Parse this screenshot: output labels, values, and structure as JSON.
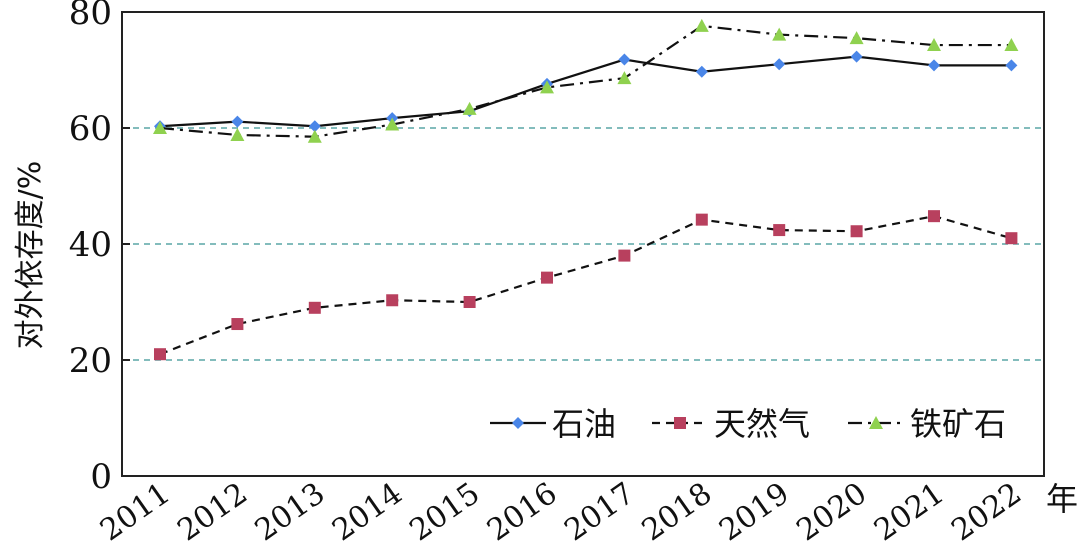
{
  "chart_data": {
    "type": "line",
    "xlabel": "年",
    "ylabel": "对外依存度/%",
    "categories": [
      "2011",
      "2012",
      "2013",
      "2014",
      "2015",
      "2016",
      "2017",
      "2018",
      "2019",
      "2020",
      "2021",
      "2022"
    ],
    "ylim": [
      0,
      80
    ],
    "yticks": [
      0,
      20,
      40,
      60,
      80
    ],
    "grid": "horizontal dashed at 20, 40, 60",
    "legend_position": "bottom-right",
    "series": [
      {
        "name": "石油",
        "values": [
          60.3,
          61.1,
          60.3,
          61.7,
          62.9,
          67.6,
          71.8,
          69.7,
          71.0,
          72.3,
          70.8,
          70.8
        ],
        "color": "#4a86e8",
        "marker": "diamond",
        "line": "solid"
      },
      {
        "name": "天然气",
        "values": [
          21.0,
          26.2,
          29.0,
          30.3,
          30.0,
          34.2,
          38.0,
          44.2,
          42.4,
          42.2,
          44.8,
          41.0
        ],
        "color": "#b8405e",
        "marker": "square",
        "line": "dashed"
      },
      {
        "name": "铁矿石",
        "values": [
          60.0,
          58.8,
          58.5,
          60.6,
          63.3,
          67.0,
          68.6,
          77.6,
          76.1,
          75.5,
          74.3,
          74.3
        ],
        "color": "#8fd14f",
        "marker": "triangle",
        "line": "dashdot"
      }
    ]
  }
}
